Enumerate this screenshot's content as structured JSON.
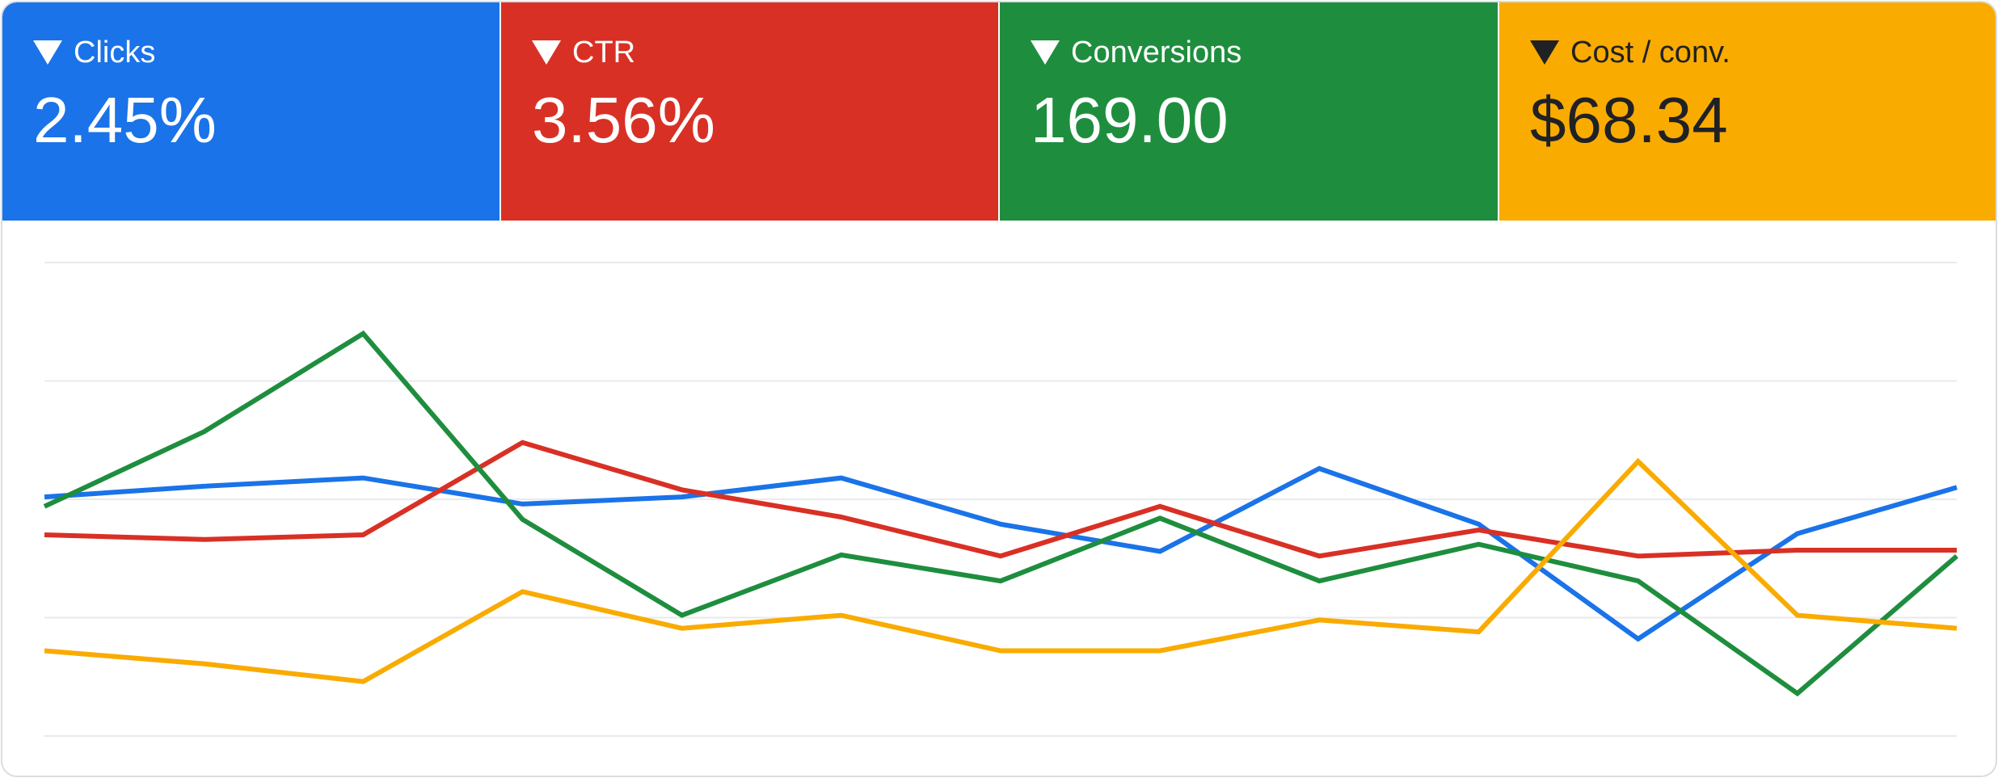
{
  "metrics": [
    {
      "id": "clicks",
      "label": "Clicks",
      "value": "2.45%",
      "color": "#1a73e8",
      "text_color": "#ffffff"
    },
    {
      "id": "ctr",
      "label": "CTR",
      "value": "3.56%",
      "color": "#d93025",
      "text_color": "#ffffff"
    },
    {
      "id": "conversions",
      "label": "Conversions",
      "value": "169.00",
      "color": "#1e8e3e",
      "text_color": "#ffffff"
    },
    {
      "id": "cost-per-conv",
      "label": "Cost / conv.",
      "value": "$68.34",
      "color": "#f9ab00",
      "text_color": "#202124"
    }
  ],
  "icons": {
    "tile_toggle": "triangle-down-icon"
  },
  "chart_data": {
    "type": "line",
    "x": [
      1,
      2,
      3,
      4,
      5,
      6,
      7,
      8,
      9,
      10,
      11,
      12,
      13
    ],
    "ylim": [
      0,
      4
    ],
    "grid": true,
    "grid_color": "#e8eaed",
    "series": [
      {
        "name": "Clicks",
        "color": "#1a73e8",
        "values": [
          2.02,
          2.11,
          2.18,
          1.96,
          2.02,
          2.18,
          1.79,
          1.56,
          2.26,
          1.79,
          0.82,
          1.71,
          2.1
        ]
      },
      {
        "name": "CTR",
        "color": "#d93025",
        "values": [
          1.7,
          1.66,
          1.7,
          2.48,
          2.08,
          1.85,
          1.52,
          1.94,
          1.52,
          1.74,
          1.52,
          1.57,
          1.57
        ]
      },
      {
        "name": "Conversions",
        "color": "#1e8e3e",
        "values": [
          1.94,
          2.57,
          3.4,
          1.83,
          1.02,
          1.53,
          1.31,
          1.84,
          1.31,
          1.62,
          1.31,
          0.36,
          1.52
        ]
      },
      {
        "name": "Cost / conv.",
        "color": "#f9ab00",
        "values": [
          0.72,
          0.61,
          0.46,
          1.22,
          0.91,
          1.02,
          0.72,
          0.72,
          0.98,
          0.88,
          2.32,
          1.02,
          0.91
        ]
      }
    ]
  }
}
